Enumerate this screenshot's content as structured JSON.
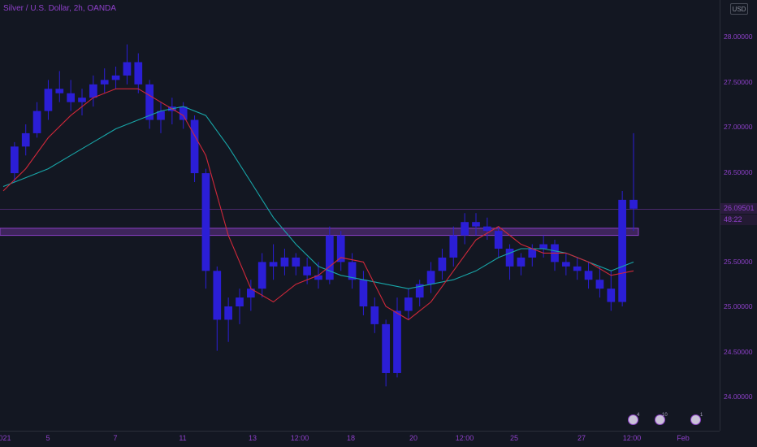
{
  "legend": {
    "title": "Silver / U.S. Dollar, 2h, OANDA"
  },
  "currency": "USD",
  "price_axis": {
    "labels": [
      "28.00000",
      "27.50000",
      "27.00000",
      "26.50000",
      "25.50000",
      "25.00000",
      "24.50000",
      "24.00000"
    ]
  },
  "current_price": "26.09501",
  "countdown": "48:22",
  "time_axis": {
    "labels": [
      "021",
      "5",
      "7",
      "11",
      "13",
      "12:00",
      "18",
      "20",
      "12:00",
      "25",
      "27",
      "12:00",
      "Feb"
    ]
  },
  "events": [
    {
      "count": "4"
    },
    {
      "count": "10"
    },
    {
      "count": "1"
    }
  ],
  "colors": {
    "background": "#131722",
    "candle": "#2b1ed6",
    "ma_fast": "#d0283a",
    "ma_slow": "#18a6a8",
    "zone": "#8e40c9",
    "text": "#8e40c9"
  },
  "chart_data": {
    "type": "candlestick",
    "symbol": "Silver / U.S. Dollar",
    "interval": "2h",
    "source": "OANDA",
    "ylim": [
      23.6,
      28.45
    ],
    "support_resistance_zone": [
      25.8,
      25.88
    ],
    "current_price": 26.095,
    "candles": [
      [
        0.5,
        26.5,
        26.85,
        26.4,
        26.8
      ],
      [
        1,
        26.8,
        27.05,
        26.7,
        26.95
      ],
      [
        1.5,
        26.95,
        27.3,
        26.9,
        27.2
      ],
      [
        2,
        27.2,
        27.55,
        27.1,
        27.45
      ],
      [
        2.5,
        27.45,
        27.65,
        27.3,
        27.4
      ],
      [
        3,
        27.4,
        27.55,
        27.2,
        27.3
      ],
      [
        3.5,
        27.3,
        27.45,
        27.15,
        27.35
      ],
      [
        4,
        27.35,
        27.6,
        27.25,
        27.5
      ],
      [
        4.5,
        27.5,
        27.68,
        27.4,
        27.55
      ],
      [
        5,
        27.55,
        27.7,
        27.45,
        27.6
      ],
      [
        5.5,
        27.6,
        27.95,
        27.5,
        27.75
      ],
      [
        6,
        27.75,
        27.85,
        27.4,
        27.5
      ],
      [
        6.5,
        27.5,
        27.55,
        27.0,
        27.1
      ],
      [
        7,
        27.1,
        27.3,
        26.95,
        27.2
      ],
      [
        7.5,
        27.2,
        27.35,
        27.05,
        27.25
      ],
      [
        8,
        27.25,
        27.3,
        27.0,
        27.1
      ],
      [
        8.5,
        27.1,
        27.15,
        26.4,
        26.5
      ],
      [
        9,
        26.5,
        26.55,
        25.2,
        25.4
      ],
      [
        9.5,
        25.4,
        25.45,
        24.5,
        24.85
      ],
      [
        10,
        24.85,
        25.1,
        24.6,
        25.0
      ],
      [
        10.5,
        25.0,
        25.2,
        24.8,
        25.1
      ],
      [
        11,
        25.1,
        25.3,
        24.95,
        25.2
      ],
      [
        11.5,
        25.2,
        25.6,
        25.1,
        25.5
      ],
      [
        12,
        25.5,
        25.7,
        25.3,
        25.45
      ],
      [
        12.5,
        25.45,
        25.65,
        25.35,
        25.55
      ],
      [
        13,
        25.55,
        25.6,
        25.35,
        25.45
      ],
      [
        13.5,
        25.45,
        25.55,
        25.25,
        25.35
      ],
      [
        14,
        25.35,
        25.5,
        25.2,
        25.3
      ],
      [
        14.5,
        25.3,
        25.9,
        25.25,
        25.8
      ],
      [
        15,
        25.8,
        25.85,
        25.4,
        25.5
      ],
      [
        15.5,
        25.5,
        25.6,
        25.2,
        25.3
      ],
      [
        16,
        25.3,
        25.4,
        24.9,
        25.0
      ],
      [
        16.5,
        25.0,
        25.1,
        24.7,
        24.8
      ],
      [
        17,
        24.8,
        24.85,
        24.1,
        24.25
      ],
      [
        17.5,
        24.25,
        25.1,
        24.2,
        24.95
      ],
      [
        18,
        24.95,
        25.2,
        24.85,
        25.1
      ],
      [
        18.5,
        25.1,
        25.3,
        25.0,
        25.25
      ],
      [
        19,
        25.25,
        25.5,
        25.15,
        25.4
      ],
      [
        19.5,
        25.4,
        25.65,
        25.3,
        25.55
      ],
      [
        20,
        25.55,
        25.9,
        25.45,
        25.8
      ],
      [
        20.5,
        25.8,
        26.05,
        25.7,
        25.95
      ],
      [
        21,
        25.95,
        26.05,
        25.8,
        25.9
      ],
      [
        21.5,
        25.9,
        26.0,
        25.75,
        25.85
      ],
      [
        22,
        25.85,
        25.9,
        25.55,
        25.65
      ],
      [
        22.5,
        25.65,
        25.7,
        25.3,
        25.45
      ],
      [
        23,
        25.45,
        25.6,
        25.35,
        25.55
      ],
      [
        23.5,
        25.55,
        25.7,
        25.45,
        25.65
      ],
      [
        24,
        25.65,
        25.8,
        25.55,
        25.7
      ],
      [
        24.5,
        25.7,
        25.75,
        25.4,
        25.5
      ],
      [
        25,
        25.5,
        25.6,
        25.35,
        25.45
      ],
      [
        25.5,
        25.45,
        25.55,
        25.3,
        25.4
      ],
      [
        26,
        25.4,
        25.5,
        25.2,
        25.3
      ],
      [
        26.5,
        25.3,
        25.45,
        25.1,
        25.2
      ],
      [
        27,
        25.2,
        25.4,
        24.95,
        25.05
      ],
      [
        27.5,
        25.05,
        26.3,
        25.0,
        26.2
      ],
      [
        28,
        26.2,
        26.95,
        25.85,
        26.1
      ]
    ],
    "ma_fast": [
      [
        0,
        26.3
      ],
      [
        1,
        26.55
      ],
      [
        2,
        26.9
      ],
      [
        3,
        27.15
      ],
      [
        4,
        27.35
      ],
      [
        5,
        27.45
      ],
      [
        6,
        27.45
      ],
      [
        7,
        27.3
      ],
      [
        8,
        27.15
      ],
      [
        9,
        26.7
      ],
      [
        10,
        25.8
      ],
      [
        11,
        25.2
      ],
      [
        12,
        25.05
      ],
      [
        13,
        25.25
      ],
      [
        14,
        25.35
      ],
      [
        15,
        25.55
      ],
      [
        16,
        25.5
      ],
      [
        17,
        25.0
      ],
      [
        18,
        24.85
      ],
      [
        19,
        25.05
      ],
      [
        20,
        25.4
      ],
      [
        21,
        25.75
      ],
      [
        22,
        25.9
      ],
      [
        23,
        25.7
      ],
      [
        24,
        25.6
      ],
      [
        25,
        25.6
      ],
      [
        26,
        25.5
      ],
      [
        27,
        25.35
      ],
      [
        28,
        25.4
      ]
    ],
    "ma_slow": [
      [
        0,
        26.35
      ],
      [
        1,
        26.45
      ],
      [
        2,
        26.55
      ],
      [
        3,
        26.7
      ],
      [
        4,
        26.85
      ],
      [
        5,
        27.0
      ],
      [
        6,
        27.1
      ],
      [
        7,
        27.2
      ],
      [
        8,
        27.25
      ],
      [
        9,
        27.15
      ],
      [
        10,
        26.8
      ],
      [
        11,
        26.4
      ],
      [
        12,
        26.0
      ],
      [
        13,
        25.7
      ],
      [
        14,
        25.45
      ],
      [
        15,
        25.35
      ],
      [
        16,
        25.3
      ],
      [
        17,
        25.25
      ],
      [
        18,
        25.2
      ],
      [
        19,
        25.25
      ],
      [
        20,
        25.3
      ],
      [
        21,
        25.4
      ],
      [
        22,
        25.55
      ],
      [
        23,
        25.65
      ],
      [
        24,
        25.65
      ],
      [
        25,
        25.6
      ],
      [
        26,
        25.5
      ],
      [
        27,
        25.4
      ],
      [
        28,
        25.5
      ]
    ]
  }
}
